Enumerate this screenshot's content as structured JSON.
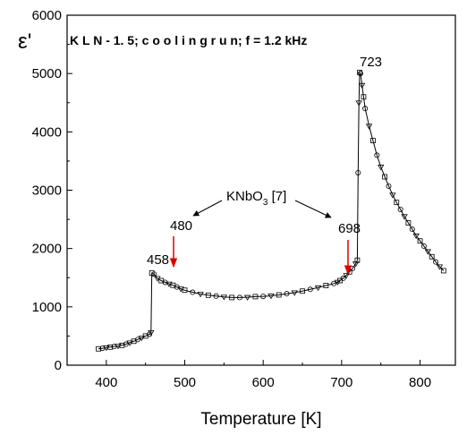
{
  "chart_data": {
    "type": "scatter",
    "title": "K L N - 1. 5;  c o o l i n g  r u n;  f = 1.2 kHz",
    "xlabel": "Temperature [K]",
    "ylabel": "ε'",
    "xlim": [
      350,
      845
    ],
    "ylim": [
      0,
      6000
    ],
    "x_ticks": [
      400,
      500,
      600,
      700,
      800
    ],
    "y_ticks": [
      0,
      1000,
      2000,
      3000,
      4000,
      5000,
      6000
    ],
    "x_tick_labels": [
      "400",
      "500",
      "600",
      "700",
      "800"
    ],
    "y_tick_labels": [
      "0",
      "1000",
      "2000",
      "3000",
      "4000",
      "5000",
      "6000"
    ],
    "grid": false,
    "legend": "none",
    "series": [
      {
        "x": [
          390,
          395,
          400,
          405,
          410,
          415,
          420,
          425,
          430,
          435,
          440,
          445,
          450,
          455,
          457,
          458,
          461,
          465,
          470,
          475,
          480,
          485,
          490,
          495,
          500,
          510,
          520,
          530,
          540,
          550,
          560,
          570,
          580,
          590,
          600,
          610,
          620,
          630,
          640,
          650,
          660,
          670,
          680,
          690,
          695,
          698,
          702,
          706,
          710,
          714,
          718,
          720,
          721,
          722,
          723,
          724,
          726,
          728,
          730,
          735,
          740,
          745,
          750,
          755,
          760,
          765,
          770,
          775,
          780,
          785,
          790,
          795,
          800,
          805,
          810,
          815,
          820,
          825,
          830
        ],
        "y": [
          280,
          290,
          300,
          310,
          320,
          330,
          340,
          360,
          385,
          410,
          440,
          470,
          500,
          530,
          560,
          1580,
          1560,
          1490,
          1450,
          1420,
          1395,
          1370,
          1340,
          1310,
          1285,
          1250,
          1220,
          1200,
          1185,
          1170,
          1160,
          1160,
          1165,
          1175,
          1180,
          1190,
          1205,
          1225,
          1245,
          1270,
          1300,
          1330,
          1365,
          1400,
          1425,
          1450,
          1490,
          1540,
          1600,
          1660,
          1740,
          1800,
          3300,
          4500,
          5020,
          5000,
          4800,
          4600,
          4400,
          4100,
          3850,
          3600,
          3400,
          3230,
          3070,
          2920,
          2790,
          2670,
          2550,
          2440,
          2330,
          2220,
          2130,
          2040,
          1950,
          1860,
          1770,
          1690,
          1620
        ]
      }
    ],
    "annotations": [
      {
        "text": "723",
        "x": 723,
        "y": 5000
      },
      {
        "text": "458",
        "x": 458,
        "y": 1580
      },
      {
        "text": "480",
        "x": 480,
        "y": 1380
      },
      {
        "text": "698",
        "x": 698,
        "y": 1450
      },
      {
        "text": "KNbO",
        "sub": "3",
        "suffix": " [7]"
      }
    ],
    "colors": {
      "arrow_red": "#dd0000",
      "line": "#000000"
    }
  }
}
